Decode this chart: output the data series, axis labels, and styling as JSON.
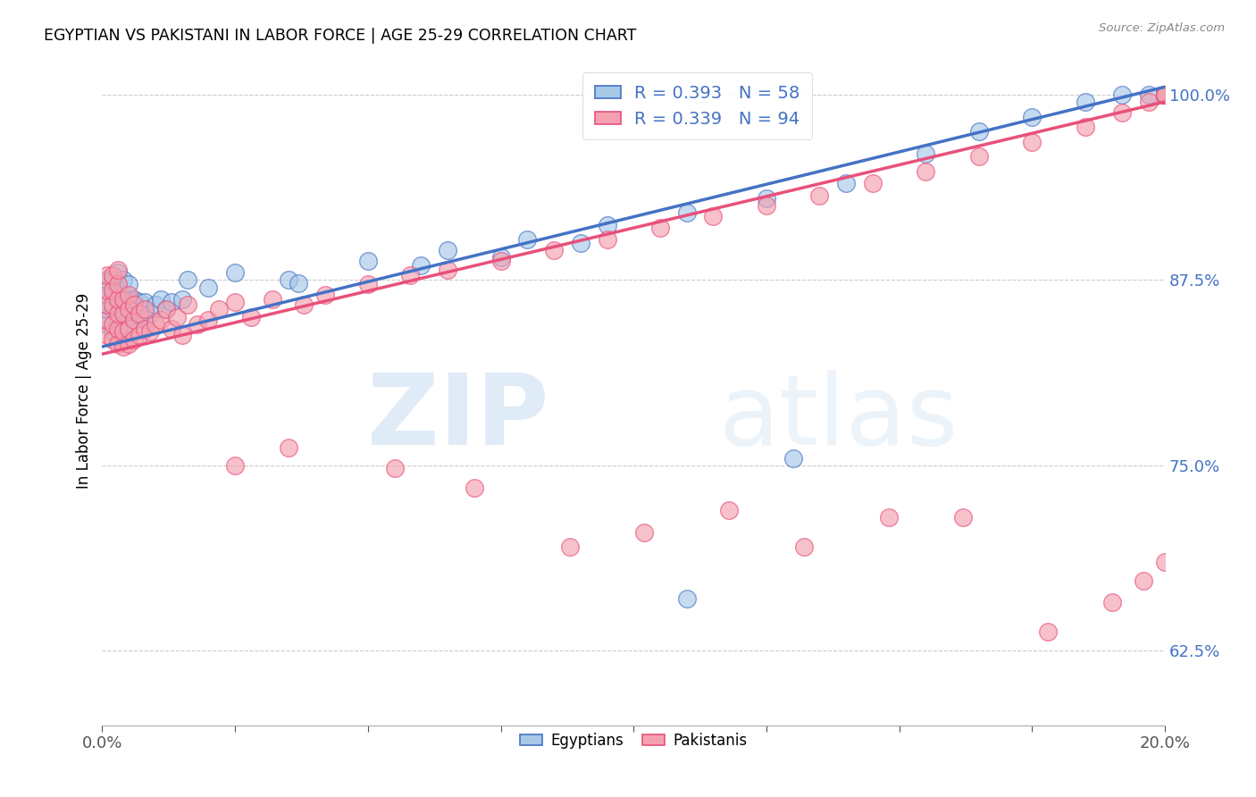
{
  "title": "EGYPTIAN VS PAKISTANI IN LABOR FORCE | AGE 25-29 CORRELATION CHART",
  "source": "Source: ZipAtlas.com",
  "ylabel": "In Labor Force | Age 25-29",
  "yticks": [
    0.625,
    0.75,
    0.875,
    1.0
  ],
  "ytick_labels": [
    "62.5%",
    "75.0%",
    "87.5%",
    "100.0%"
  ],
  "watermark_zip": "ZIP",
  "watermark_atlas": "atlas",
  "legend_egyptian": "R = 0.393   N = 58",
  "legend_pakistani": "R = 0.339   N = 94",
  "egyptian_color": "#A8C8E8",
  "pakistani_color": "#F4A0B0",
  "trend_egyptian_color": "#4472C4",
  "trend_pakistani_color": "#E8507A",
  "background_color": "#ffffff",
  "xlim": [
    0.0,
    0.2
  ],
  "ylim": [
    0.575,
    1.025
  ],
  "trend_eg_x0": 0.0,
  "trend_eg_y0": 0.83,
  "trend_eg_x1": 0.2,
  "trend_eg_y1": 1.005,
  "trend_pk_x0": 0.0,
  "trend_pk_y0": 0.825,
  "trend_pk_x1": 0.2,
  "trend_pk_y1": 0.995,
  "egyptian_x": [
    0.001,
    0.001,
    0.001,
    0.001,
    0.002,
    0.002,
    0.002,
    0.002,
    0.003,
    0.003,
    0.003,
    0.003,
    0.003,
    0.004,
    0.004,
    0.004,
    0.004,
    0.005,
    0.005,
    0.005,
    0.006,
    0.006,
    0.007,
    0.007,
    0.008,
    0.008,
    0.009,
    0.01,
    0.011,
    0.012,
    0.013,
    0.015,
    0.016,
    0.02,
    0.025,
    0.035,
    0.05,
    0.065,
    0.08,
    0.095,
    0.11,
    0.125,
    0.14,
    0.155,
    0.165,
    0.175,
    0.185,
    0.192,
    0.197,
    0.2,
    0.2,
    0.2,
    0.037,
    0.06,
    0.075,
    0.09,
    0.11,
    0.13
  ],
  "egyptian_y": [
    0.845,
    0.855,
    0.865,
    0.875,
    0.84,
    0.855,
    0.865,
    0.875,
    0.84,
    0.85,
    0.86,
    0.87,
    0.88,
    0.845,
    0.855,
    0.865,
    0.875,
    0.85,
    0.862,
    0.872,
    0.848,
    0.862,
    0.85,
    0.86,
    0.848,
    0.86,
    0.852,
    0.858,
    0.862,
    0.855,
    0.86,
    0.862,
    0.875,
    0.87,
    0.88,
    0.875,
    0.888,
    0.895,
    0.902,
    0.912,
    0.92,
    0.93,
    0.94,
    0.96,
    0.975,
    0.985,
    0.995,
    1.0,
    1.0,
    1.0,
    1.0,
    1.0,
    0.873,
    0.885,
    0.89,
    0.9,
    0.66,
    0.755
  ],
  "pakistani_x": [
    0.001,
    0.001,
    0.001,
    0.001,
    0.001,
    0.002,
    0.002,
    0.002,
    0.002,
    0.002,
    0.003,
    0.003,
    0.003,
    0.003,
    0.003,
    0.003,
    0.004,
    0.004,
    0.004,
    0.004,
    0.005,
    0.005,
    0.005,
    0.005,
    0.006,
    0.006,
    0.006,
    0.007,
    0.007,
    0.008,
    0.008,
    0.009,
    0.01,
    0.011,
    0.012,
    0.013,
    0.014,
    0.015,
    0.016,
    0.018,
    0.02,
    0.022,
    0.025,
    0.028,
    0.032,
    0.038,
    0.042,
    0.05,
    0.058,
    0.065,
    0.075,
    0.085,
    0.095,
    0.105,
    0.115,
    0.125,
    0.135,
    0.145,
    0.155,
    0.165,
    0.175,
    0.185,
    0.192,
    0.197,
    0.2,
    0.2,
    0.2,
    0.2,
    0.2,
    0.2,
    0.2,
    0.2,
    0.2,
    0.2,
    0.2,
    0.2,
    0.2,
    0.2,
    0.2,
    0.2,
    0.025,
    0.035,
    0.055,
    0.07,
    0.088,
    0.102,
    0.118,
    0.132,
    0.148,
    0.162,
    0.178,
    0.19,
    0.196,
    0.2
  ],
  "pakistani_y": [
    0.838,
    0.848,
    0.858,
    0.868,
    0.878,
    0.835,
    0.845,
    0.858,
    0.868,
    0.878,
    0.832,
    0.842,
    0.852,
    0.862,
    0.872,
    0.882,
    0.83,
    0.84,
    0.852,
    0.862,
    0.832,
    0.842,
    0.855,
    0.865,
    0.835,
    0.848,
    0.858,
    0.838,
    0.852,
    0.842,
    0.855,
    0.84,
    0.845,
    0.848,
    0.855,
    0.842,
    0.85,
    0.838,
    0.858,
    0.845,
    0.848,
    0.855,
    0.86,
    0.85,
    0.862,
    0.858,
    0.865,
    0.872,
    0.878,
    0.882,
    0.888,
    0.895,
    0.902,
    0.91,
    0.918,
    0.925,
    0.932,
    0.94,
    0.948,
    0.958,
    0.968,
    0.978,
    0.988,
    0.995,
    1.0,
    1.0,
    1.0,
    1.0,
    1.0,
    1.0,
    1.0,
    1.0,
    1.0,
    1.0,
    1.0,
    1.0,
    1.0,
    1.0,
    1.0,
    1.0,
    0.75,
    0.762,
    0.748,
    0.735,
    0.695,
    0.705,
    0.72,
    0.695,
    0.715,
    0.715,
    0.638,
    0.658,
    0.672,
    0.685
  ]
}
